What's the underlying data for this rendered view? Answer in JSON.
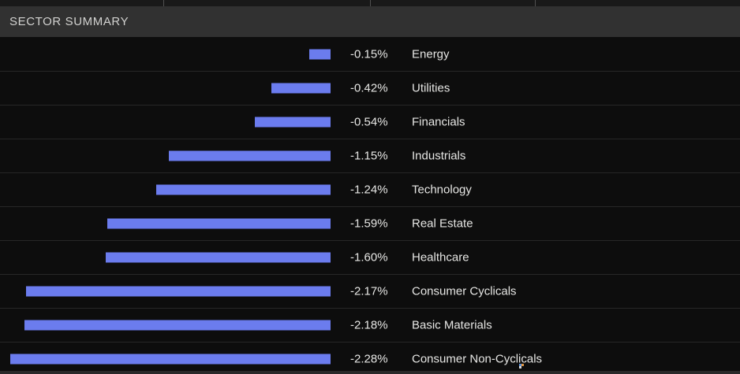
{
  "header": {
    "title": "SECTOR SUMMARY"
  },
  "chart_data": {
    "type": "bar",
    "orientation": "horizontal",
    "title": "SECTOR SUMMARY",
    "categories": [
      "Energy",
      "Utilities",
      "Financials",
      "Industrials",
      "Technology",
      "Real Estate",
      "Healthcare",
      "Consumer Cyclicals",
      "Basic Materials",
      "Consumer Non-Cyclicals"
    ],
    "values": [
      -0.15,
      -0.42,
      -0.54,
      -1.15,
      -1.24,
      -1.59,
      -1.6,
      -2.17,
      -2.18,
      -2.28
    ],
    "value_labels": [
      "-0.15%",
      "-0.42%",
      "-0.54%",
      "-1.15%",
      "-1.24%",
      "-1.59%",
      "-1.60%",
      "-2.17%",
      "-2.18%",
      "-2.28%"
    ],
    "xlim": [
      -2.3,
      0
    ],
    "grid": false,
    "legend": false,
    "bars_right_aligned": true
  },
  "colors": {
    "bar": "#6b7cee",
    "row_background": "#0d0d0d",
    "row_separator": "#272727",
    "row_text": "#e6e6e4",
    "header_background": "#313131",
    "header_text": "#d2d2d0",
    "top_strip_background": "#191919",
    "top_strip_divider": "#505050",
    "bottom_edge": "#2a2a2a"
  }
}
